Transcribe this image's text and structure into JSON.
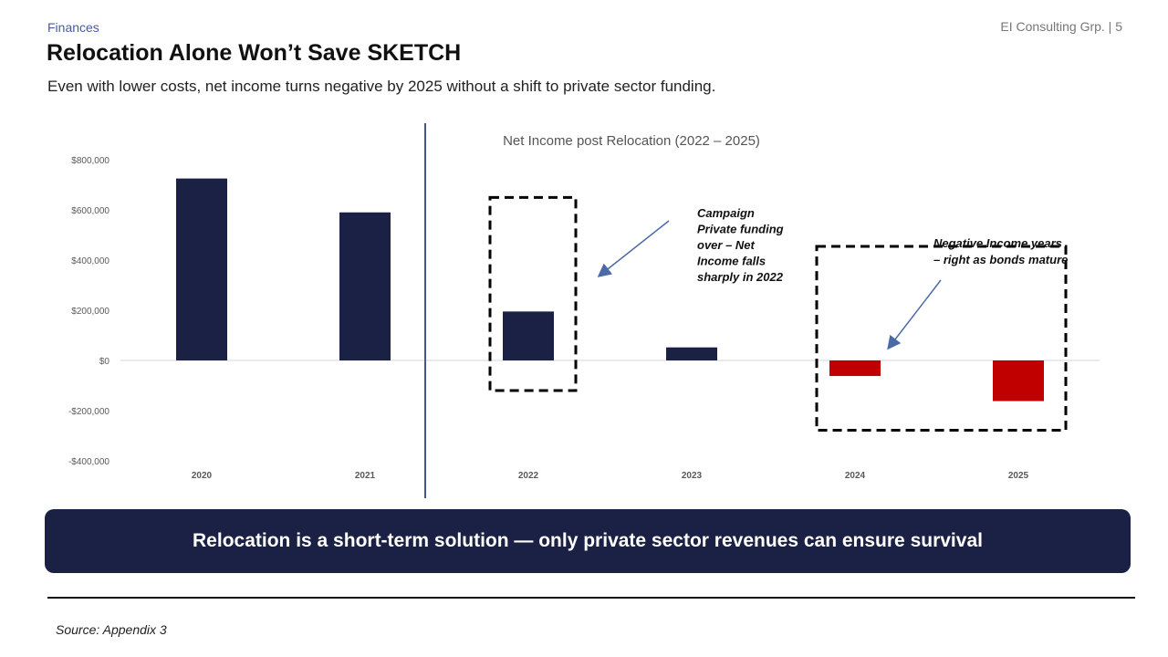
{
  "header": {
    "section": "Finances",
    "page_tag": "EI Consulting Grp. | 5",
    "title": "Relocation Alone Won’t Save SKETCH",
    "subtitle": "Even with lower costs, net income turns negative by 2025 without a shift to private sector funding."
  },
  "chart_data": {
    "type": "bar",
    "title": "Net Income post Relocation (2022 – 2025)",
    "xlabel": "",
    "ylabel": "",
    "categories": [
      "2020",
      "2021",
      "2022",
      "2023",
      "2024",
      "2025"
    ],
    "values": [
      725000,
      590000,
      195000,
      52000,
      -62000,
      -162000
    ],
    "ylim": [
      -400000,
      800000
    ],
    "yticks": [
      800000,
      600000,
      400000,
      200000,
      0,
      -200000,
      -400000
    ],
    "ytick_labels": [
      "$800,000",
      "$600,000",
      "$400,000",
      "$200,000",
      "$0",
      "-$200,000",
      "-$400,000"
    ],
    "grid": false,
    "legend": "none",
    "colors": {
      "positive": "#1b2145",
      "negative": "#c00000",
      "divider": "#3d5a8a",
      "arrow": "#4a6aa8"
    },
    "annotations": [
      {
        "id": "campaign",
        "lines": [
          "Campaign",
          "Private funding",
          "over – Net",
          "Income falls",
          "sharply in 2022"
        ],
        "highlight": [
          "2022"
        ]
      },
      {
        "id": "negative",
        "lines": [
          "Negative Income years",
          "– right as bonds mature"
        ],
        "highlight": [
          "2024",
          "2025"
        ]
      }
    ]
  },
  "banner": {
    "text": "Relocation is a short-term solution — only private sector revenues can ensure survival"
  },
  "footer": {
    "source": "Source: Appendix 3"
  }
}
